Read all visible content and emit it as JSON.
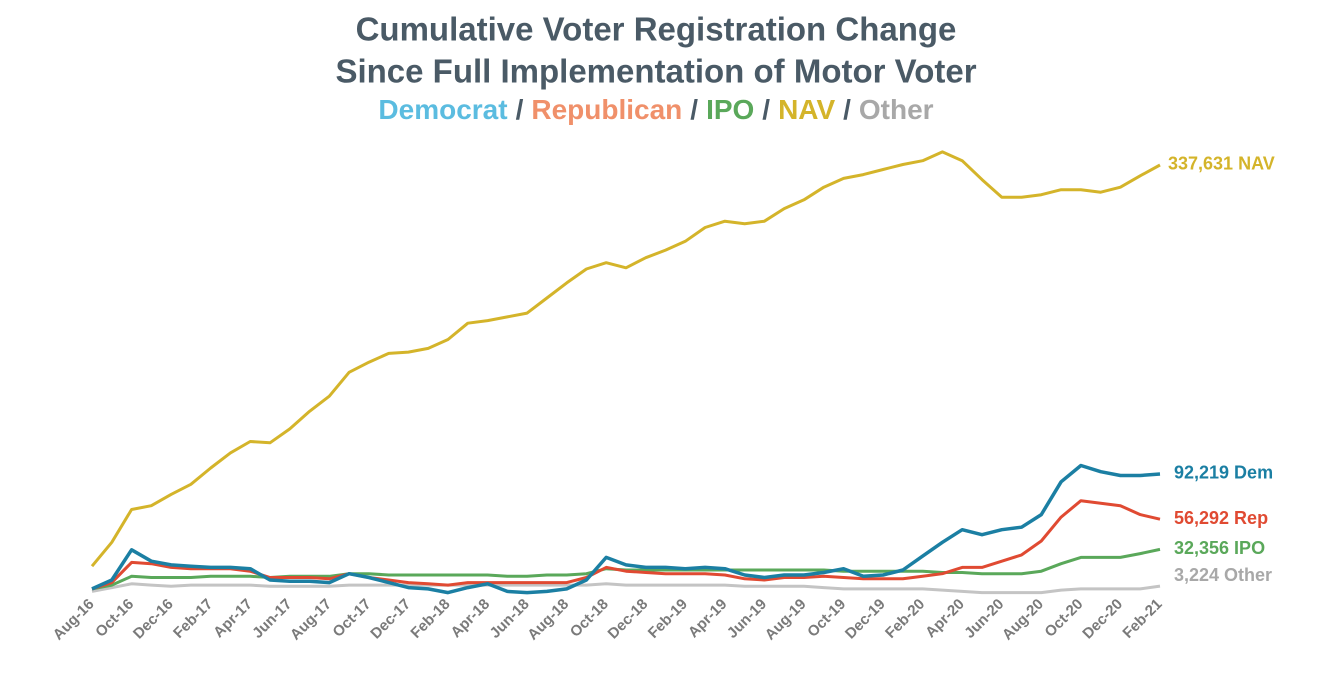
{
  "chart_data": {
    "type": "line",
    "title": [
      "Cumulative Voter Registration Change",
      "Since Full Implementation of Motor Voter"
    ],
    "legend_separator": "/",
    "categories": [
      "Aug-16",
      null,
      "Oct-16",
      null,
      "Dec-16",
      null,
      "Feb-17",
      null,
      "Apr-17",
      null,
      "Jun-17",
      null,
      "Aug-17",
      null,
      "Oct-17",
      null,
      "Dec-17",
      null,
      "Feb-18",
      null,
      "Apr-18",
      null,
      "Jun-18",
      null,
      "Aug-18",
      null,
      "Oct-18",
      null,
      "Dec-18",
      null,
      "Feb-19",
      null,
      "Apr-19",
      null,
      "Jun-19",
      null,
      "Aug-19",
      null,
      "Oct-19",
      null,
      "Dec-19",
      null,
      "Feb-20",
      null,
      "Apr-20",
      null,
      "Jun-20",
      null,
      "Aug-20",
      null,
      "Oct-20",
      null,
      "Dec-20",
      null,
      "Feb-21"
    ],
    "ylim": [
      -15000,
      350000
    ],
    "series": [
      {
        "name": "Democrat",
        "color": "#1b7fa3",
        "legend_color": "#5bbce0",
        "values": [
          1000,
          8000,
          32000,
          23000,
          20000,
          19000,
          18000,
          18000,
          17000,
          8000,
          7000,
          7000,
          6000,
          13000,
          10000,
          6000,
          2000,
          1000,
          -2000,
          2000,
          5000,
          -1000,
          -2000,
          -1000,
          1000,
          8000,
          26000,
          20000,
          18000,
          18000,
          17000,
          18000,
          17000,
          12000,
          10000,
          12000,
          12000,
          14000,
          17000,
          11000,
          12000,
          16000,
          27000,
          38000,
          48000,
          44000,
          48000,
          50000,
          60000,
          86000,
          99000,
          94000,
          91000,
          91000,
          92219
        ],
        "value_labels": [
          null,
          null,
          null,
          null,
          null,
          null,
          null,
          null,
          null,
          null,
          null,
          null,
          null,
          null,
          null,
          null,
          null,
          null,
          null,
          null,
          null,
          null,
          null,
          null,
          null,
          null,
          null,
          null,
          null,
          null,
          null,
          null,
          null,
          null,
          null,
          null,
          null,
          null,
          null,
          null,
          null,
          null,
          null,
          null,
          null,
          null,
          null,
          null,
          null,
          null,
          null,
          null,
          null,
          null,
          "92,219 Dem"
        ]
      },
      {
        "name": "Republican",
        "color": "#e04a32",
        "legend_color": "#f0906a",
        "values": [
          1000,
          6000,
          22000,
          21000,
          18000,
          17000,
          17000,
          17000,
          15000,
          10000,
          10000,
          10000,
          9000,
          13000,
          10000,
          8000,
          6000,
          5000,
          4000,
          6000,
          6000,
          6000,
          6000,
          6000,
          6000,
          10000,
          18000,
          15000,
          14000,
          13000,
          13000,
          13000,
          12000,
          9000,
          8000,
          10000,
          10000,
          11000,
          10000,
          9000,
          9000,
          9000,
          11000,
          13000,
          18000,
          18000,
          23000,
          28000,
          39000,
          58000,
          71000,
          69000,
          67000,
          60000,
          56292
        ],
        "value_labels": [
          null,
          null,
          null,
          null,
          null,
          null,
          null,
          null,
          null,
          null,
          null,
          null,
          null,
          null,
          null,
          null,
          null,
          null,
          null,
          null,
          null,
          null,
          null,
          null,
          null,
          null,
          null,
          null,
          null,
          null,
          null,
          null,
          null,
          null,
          null,
          null,
          null,
          null,
          null,
          null,
          null,
          null,
          null,
          null,
          null,
          null,
          null,
          null,
          null,
          null,
          null,
          null,
          null,
          null,
          "56,292 Rep"
        ]
      },
      {
        "name": "IPO",
        "color": "#5aa85a",
        "legend_color": "#5aa85a",
        "values": [
          1000,
          4000,
          11000,
          10000,
          10000,
          10000,
          11000,
          11000,
          11000,
          10000,
          11000,
          11000,
          11000,
          13000,
          13000,
          12000,
          12000,
          12000,
          12000,
          12000,
          12000,
          11000,
          11000,
          12000,
          12000,
          13000,
          17000,
          16000,
          16000,
          16000,
          16000,
          16000,
          16000,
          16000,
          16000,
          16000,
          16000,
          16000,
          15000,
          15000,
          15000,
          15000,
          15000,
          14000,
          14000,
          13000,
          13000,
          13000,
          15000,
          21000,
          26000,
          26000,
          26000,
          29000,
          32356
        ],
        "value_labels": [
          null,
          null,
          null,
          null,
          null,
          null,
          null,
          null,
          null,
          null,
          null,
          null,
          null,
          null,
          null,
          null,
          null,
          null,
          null,
          null,
          null,
          null,
          null,
          null,
          null,
          null,
          null,
          null,
          null,
          null,
          null,
          null,
          null,
          null,
          null,
          null,
          null,
          null,
          null,
          null,
          null,
          null,
          null,
          null,
          null,
          null,
          null,
          null,
          null,
          null,
          null,
          null,
          null,
          null,
          "32,356 IPO"
        ]
      },
      {
        "name": "NAV",
        "color": "#d4b42a",
        "legend_color": "#d4b42a",
        "values": [
          19000,
          38000,
          64000,
          67000,
          76000,
          84000,
          97000,
          109000,
          118000,
          117000,
          128000,
          142000,
          154000,
          173000,
          181000,
          188000,
          189000,
          192000,
          199000,
          212000,
          214000,
          217000,
          220000,
          232000,
          244000,
          255000,
          260000,
          256000,
          264000,
          270000,
          277000,
          288000,
          293000,
          291000,
          293000,
          303000,
          310000,
          320000,
          327000,
          330000,
          334000,
          338000,
          341000,
          348000,
          341000,
          326000,
          312000,
          312000,
          314000,
          318000,
          318000,
          316000,
          320000,
          329000,
          337631
        ],
        "value_labels": [
          null,
          null,
          null,
          null,
          null,
          null,
          null,
          null,
          null,
          null,
          null,
          null,
          null,
          null,
          null,
          null,
          null,
          null,
          null,
          null,
          null,
          null,
          null,
          null,
          null,
          null,
          null,
          null,
          null,
          null,
          null,
          null,
          null,
          null,
          null,
          null,
          null,
          null,
          null,
          null,
          null,
          null,
          null,
          null,
          null,
          null,
          null,
          null,
          null,
          null,
          null,
          null,
          null,
          null,
          "337,631 NAV"
        ]
      },
      {
        "name": "Other",
        "color": "#c4c4c4",
        "legend_color": "#a8a8a8",
        "values": [
          -1000,
          2000,
          5000,
          4000,
          3000,
          4000,
          4000,
          4000,
          4000,
          3000,
          3000,
          3000,
          3000,
          4000,
          4000,
          4000,
          4000,
          4000,
          4000,
          4000,
          4000,
          4000,
          4000,
          4000,
          4000,
          4000,
          5000,
          4000,
          4000,
          4000,
          4000,
          4000,
          4000,
          3000,
          3000,
          3000,
          3000,
          2000,
          1000,
          1000,
          1000,
          1000,
          1000,
          0,
          -1000,
          -2000,
          -2000,
          -2000,
          -2000,
          0,
          1000,
          1000,
          1000,
          1000,
          3224
        ],
        "value_labels": [
          null,
          null,
          null,
          null,
          null,
          null,
          null,
          null,
          null,
          null,
          null,
          null,
          null,
          null,
          null,
          null,
          null,
          null,
          null,
          null,
          null,
          null,
          null,
          null,
          null,
          null,
          null,
          null,
          null,
          null,
          null,
          null,
          null,
          null,
          null,
          null,
          null,
          null,
          null,
          null,
          null,
          null,
          null,
          null,
          null,
          null,
          null,
          null,
          null,
          null,
          null,
          null,
          null,
          null,
          "3,224 Other"
        ]
      }
    ]
  }
}
